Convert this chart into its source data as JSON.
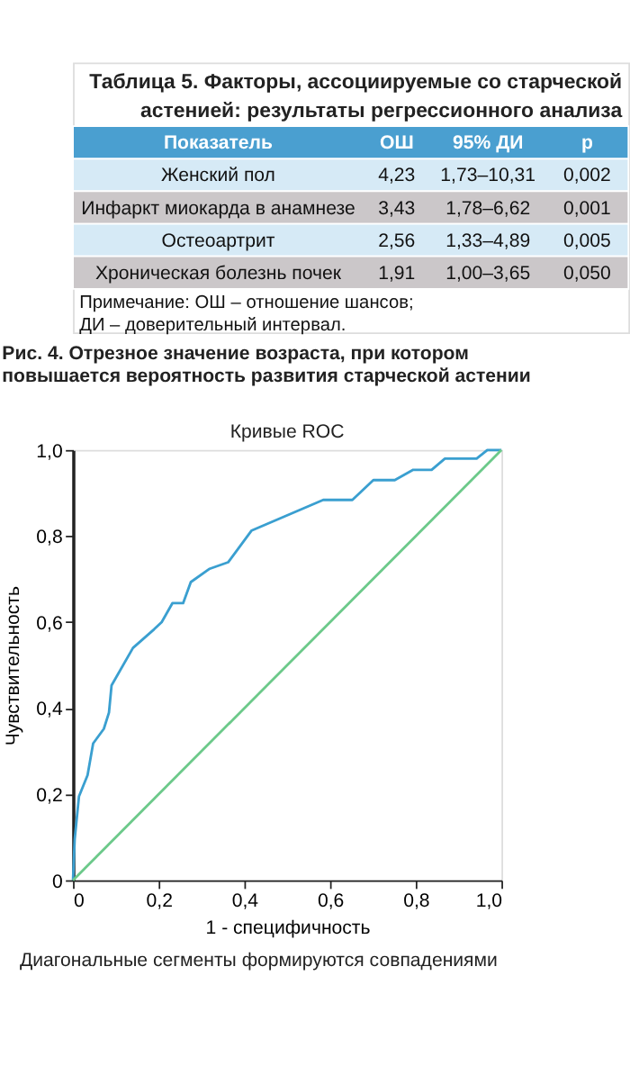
{
  "chart_data": [
    {
      "type": "other",
      "title": "Таблица 5. Факторы, ассоциируемые со старческой\nастенией: результаты регрессионного анализа",
      "categories": [
        "Показатель",
        "ОШ",
        "95% ДИ",
        "p"
      ],
      "cell_labels": [
        [
          "Женский пол",
          "4,23",
          "1,73–10,31",
          "0,002"
        ],
        [
          "Инфаркт миокарда в анамнезе",
          "3,43",
          "1,78–6,62",
          "0,001"
        ],
        [
          "Остеоартрит",
          "2,56",
          "1,33–4,89",
          "0,005"
        ],
        [
          "Хроническая болезнь почек",
          "1,91",
          "1,00–3,65",
          "0,050"
        ]
      ],
      "annotations": [
        "Примечание: ОШ – отношение шансов;",
        "ДИ – доверительный интервал."
      ]
    },
    {
      "type": "line",
      "title": "Рис. 4. Отрезное значение возраста, при котором\nповышается вероятность развития старческой астении",
      "subtitle": "Кривые ROC",
      "xlabel": "1 - специфичность",
      "ylabel": "Чувствительность",
      "annotations": [
        "Диагональные сегменты формируются совпадениями"
      ],
      "xlim": [
        0,
        1
      ],
      "ylim": [
        0,
        1
      ],
      "xticks": [
        0,
        {
          "value": 0.2,
          "label": "0,2"
        },
        {
          "value": 0.4,
          "label": "0,4"
        },
        {
          "value": 0.6,
          "label": "0,6"
        },
        {
          "value": 0.8,
          "label": "0,8"
        },
        {
          "value": 1,
          "label": "1,0"
        }
      ],
      "yticks": [
        0,
        {
          "value": 0.2,
          "label": "0,2"
        },
        {
          "value": 0.4,
          "label": "0,4"
        },
        {
          "value": 0.6,
          "label": "0,6"
        },
        {
          "value": 0.8,
          "label": "0,8"
        },
        {
          "value": 1,
          "label": "1,0"
        }
      ],
      "grid": false,
      "series": [
        {
          "color": "#3a9fd0",
          "x": [
            0,
            0.004,
            0.014,
            0.034,
            0.047,
            0.072,
            0.084,
            0.09,
            0.14,
            0.189,
            0.207,
            0.232,
            0.257,
            0.275,
            0.319,
            0.362,
            0.417,
            0.584,
            0.652,
            0.701,
            0.751,
            0.794,
            0.837,
            0.868,
            0.942,
            0.967,
            1.0
          ],
          "values": [
            0,
            0.096,
            0.195,
            0.244,
            0.318,
            0.352,
            0.39,
            0.453,
            0.54,
            0.583,
            0.6,
            0.644,
            0.644,
            0.693,
            0.724,
            0.739,
            0.813,
            0.884,
            0.884,
            0.93,
            0.93,
            0.954,
            0.954,
            0.98,
            0.98,
            1.0,
            1.0
          ]
        },
        {
          "color": "#6cc98a",
          "x": [
            0,
            1
          ],
          "values": [
            0,
            1
          ]
        }
      ]
    }
  ]
}
